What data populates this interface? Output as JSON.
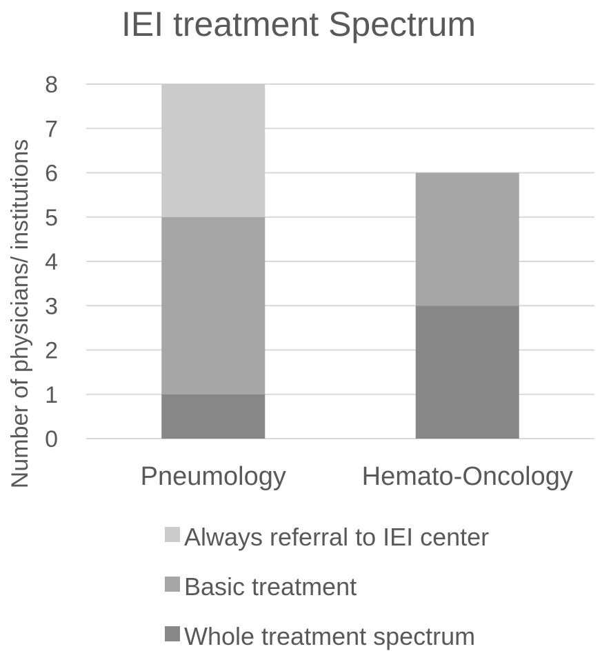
{
  "chart_data": {
    "type": "bar",
    "stacked": true,
    "title": "IEI treatment Spectrum",
    "xlabel": "",
    "ylabel": "Number of physicians/ institutions",
    "categories": [
      "Pneumology",
      "Hemato-Oncology"
    ],
    "ylim": [
      0,
      8
    ],
    "yticks": [
      "0",
      "1",
      "2",
      "3",
      "4",
      "5",
      "6",
      "7",
      "8"
    ],
    "grid": true,
    "legend_position": "bottom",
    "series": [
      {
        "name": "Whole treatment spectrum",
        "values": [
          1,
          3
        ],
        "color": "#878787"
      },
      {
        "name": "Basic treatment",
        "values": [
          4,
          3
        ],
        "color": "#a6a6a6"
      },
      {
        "name": "Always referral to IEI center",
        "values": [
          3,
          0
        ],
        "color": "#cbcbcb"
      }
    ],
    "legend_order": [
      "Always referral to IEI center",
      "Basic treatment",
      "Whole treatment spectrum"
    ]
  }
}
